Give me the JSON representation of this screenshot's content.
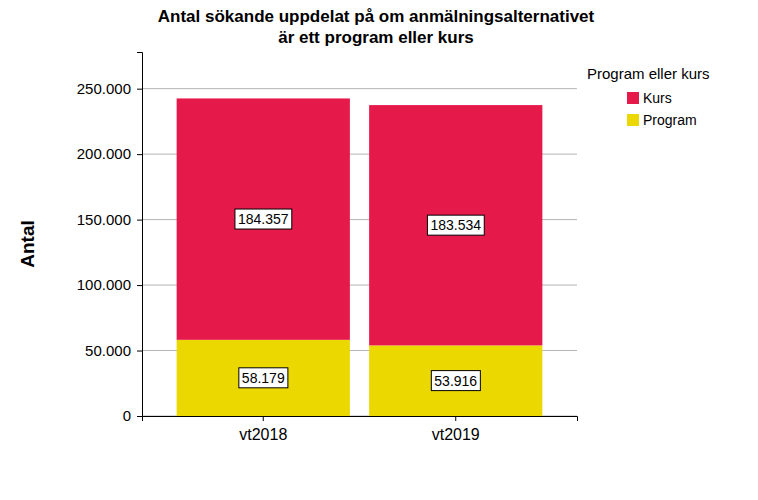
{
  "chart_data": {
    "type": "bar",
    "title": "Antal sökande uppdelat på om anmälningsalternativet\när ett program eller kurs",
    "y_label": "Antal",
    "legend_title": "Program eller kurs",
    "categories": [
      "vt2018",
      "vt2019"
    ],
    "series": [
      {
        "name": "Program",
        "color": "#ebd800",
        "values": [
          58179,
          53916
        ],
        "value_labels": [
          "58.179",
          "53.916"
        ]
      },
      {
        "name": "Kurs",
        "color": "#e6194b",
        "values": [
          184357,
          183534
        ],
        "value_labels": [
          "184.357",
          "183.534"
        ]
      }
    ],
    "stacked": true,
    "data_labels": true,
    "ylim": [
      0,
      278000
    ],
    "yticks": [
      0,
      {
        "value": 50000,
        "label": "50.000"
      },
      {
        "value": 100000,
        "label": "100.000"
      },
      {
        "value": 150000,
        "label": "150.000"
      },
      {
        "value": 200000,
        "label": "200.000"
      },
      {
        "value": 250000,
        "label": "250.000"
      }
    ],
    "grid": true,
    "legend": "right"
  }
}
